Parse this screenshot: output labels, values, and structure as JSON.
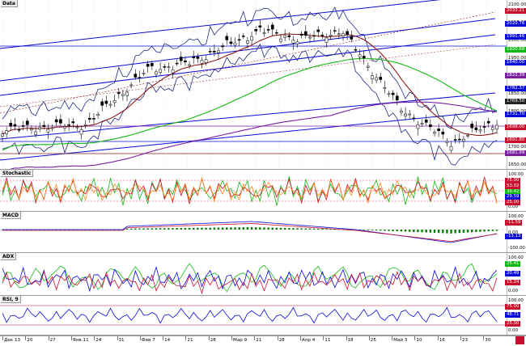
{
  "app": {
    "panel_titles": {
      "main": "Data",
      "stochastic": "Stochastic",
      "macd": "MACD",
      "adx": "ADX",
      "rsi": "RSI, 9"
    }
  },
  "price_axis": {
    "ticks": [
      "2100.00",
      "2050.00",
      "2000.00",
      "1950.00",
      "1900.00",
      "1850.00",
      "1800.00",
      "1750.00",
      "1700.00",
      "1650.00"
    ],
    "badges": [
      {
        "label": "2033.21",
        "color": "#c8102e"
      },
      {
        "label": "2020.76",
        "color": "#0a0ad8"
      },
      {
        "label": "1991.46",
        "color": "#0a0ad8"
      },
      {
        "label": "1920.68",
        "color": "#14b814"
      },
      {
        "label": "1840.00",
        "color": "#0a0ad8"
      },
      {
        "label": "1822.39",
        "color": "#7a1fa2"
      },
      {
        "label": "1782.37",
        "color": "#0a0ad8"
      },
      {
        "label": "1769.50",
        "color": "#222222"
      },
      {
        "label": "1731.70",
        "color": "#0a0ad8"
      },
      {
        "label": "1698.00",
        "color": "#c8102e"
      },
      {
        "label": "1691.80",
        "color": "#c8102e"
      },
      {
        "label": "1681.99",
        "color": "#7a1fa2"
      }
    ]
  },
  "stochastic_axis": {
    "ticks": [
      "100.00",
      "75.00",
      "50.00",
      "25.00",
      "0.00"
    ],
    "badges": [
      {
        "label": "75.00",
        "color": "#c8102e"
      },
      {
        "label": "53.02",
        "color": "#c8102e"
      },
      {
        "label": "39.42",
        "color": "#14b814"
      },
      {
        "label": "29.59",
        "color": "#0a0ad8"
      },
      {
        "label": "25.00",
        "color": "#c8102e"
      }
    ]
  },
  "macd_axis": {
    "ticks": [
      "100.00",
      "0.00",
      "-100.00"
    ],
    "badges": [
      {
        "label": "-11.59",
        "color": "#c8102e"
      },
      {
        "label": "-13.13",
        "color": "#0a0ad8"
      }
    ]
  },
  "adx_axis": {
    "ticks": [
      "100.00",
      "75.00",
      "50.00",
      "25.00",
      "0.00"
    ],
    "badges": [
      {
        "label": "25.41",
        "color": "#14b814"
      },
      {
        "label": "20.49",
        "color": "#0a0ad8"
      },
      {
        "label": "15.24",
        "color": "#c8102e"
      }
    ]
  },
  "rsi_axis": {
    "ticks": [
      "100.00",
      "75.00",
      "50.00",
      "25.00",
      "0.00"
    ],
    "badges": [
      {
        "label": "75.00",
        "color": "#c8102e"
      },
      {
        "label": "48.71",
        "color": "#0a0ad8"
      },
      {
        "label": "25.00",
        "color": "#c8102e"
      }
    ]
  },
  "time_axis": {
    "labels": [
      "Дек 13",
      "20",
      "27",
      "Янв 11",
      "24",
      "31",
      "Фев 7",
      "14",
      "21",
      "28",
      "Мар 9",
      "21",
      "28",
      "Апр 4",
      "11",
      "18",
      "25",
      "Май 3",
      "10",
      "16",
      "23",
      "30"
    ]
  },
  "colors": {
    "candle": "#000000",
    "ma_short": "#8b1a1a",
    "ma_long": "#14b814",
    "ma_purple": "#7a1fa2",
    "channel": "#0a0ad8",
    "bollinger": "#1f2a80",
    "stoch_k": "#14b814",
    "stoch_d": "#c8102e",
    "stoch_x": "#ff8c1a",
    "macd_hist": "#0a7a0a",
    "adx": "#14b814",
    "dip": "#0a0ad8",
    "dim": "#c8102e",
    "rsi": "#0a0ad8"
  }
}
